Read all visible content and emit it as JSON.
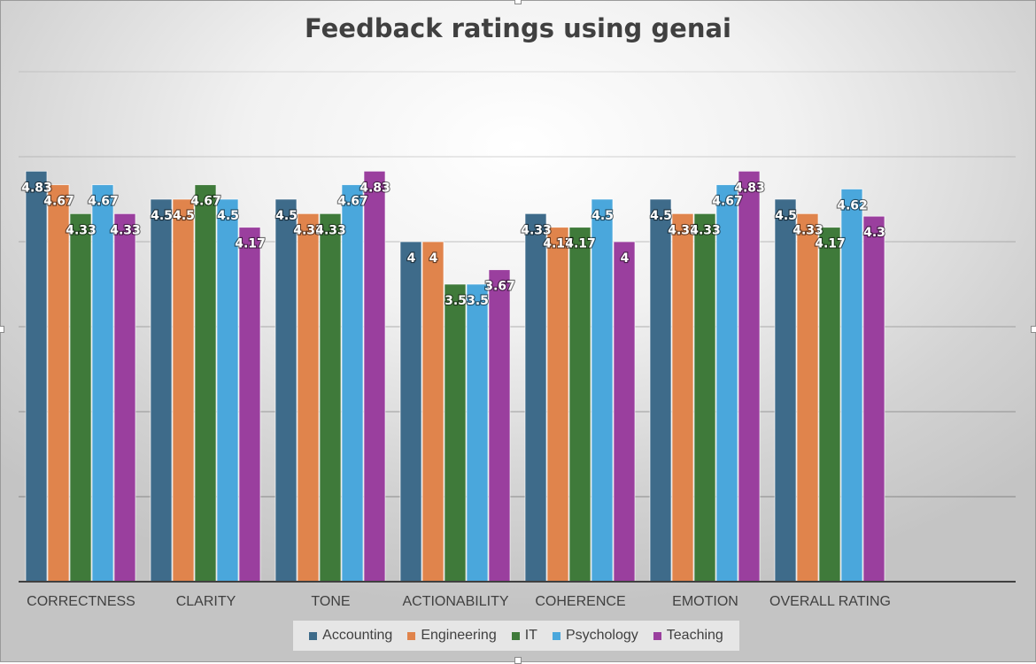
{
  "chart_data": {
    "type": "bar",
    "title": "Feedback ratings using genai",
    "categories": [
      "CORRECTNESS",
      "CLARITY",
      "TONE",
      "ACTIONABILITY",
      "COHERENCE",
      "EMOTION",
      "OVERALL RATING"
    ],
    "series": [
      {
        "name": "Accounting",
        "color": "#3e6b8a",
        "values": [
          4.83,
          4.5,
          4.5,
          4,
          4.33,
          4.5,
          4.5
        ]
      },
      {
        "name": "Engineering",
        "color": "#e0844c",
        "values": [
          4.67,
          4.5,
          4.33,
          4,
          4.17,
          4.33,
          4.33
        ]
      },
      {
        "name": "IT",
        "color": "#3f7a3a",
        "values": [
          4.33,
          4.67,
          4.33,
          3.5,
          4.17,
          4.33,
          4.17
        ]
      },
      {
        "name": "Psychology",
        "color": "#4aa7dc",
        "values": [
          4.67,
          4.5,
          4.67,
          3.5,
          4.5,
          4.67,
          4.62
        ]
      },
      {
        "name": "Teaching",
        "color": "#9a3f9e",
        "values": [
          4.33,
          4.17,
          4.83,
          3.67,
          4,
          4.83,
          4.3
        ]
      }
    ],
    "ylim": [
      0,
      6
    ],
    "grid": true,
    "legend": "bottom",
    "data_labels": true
  }
}
